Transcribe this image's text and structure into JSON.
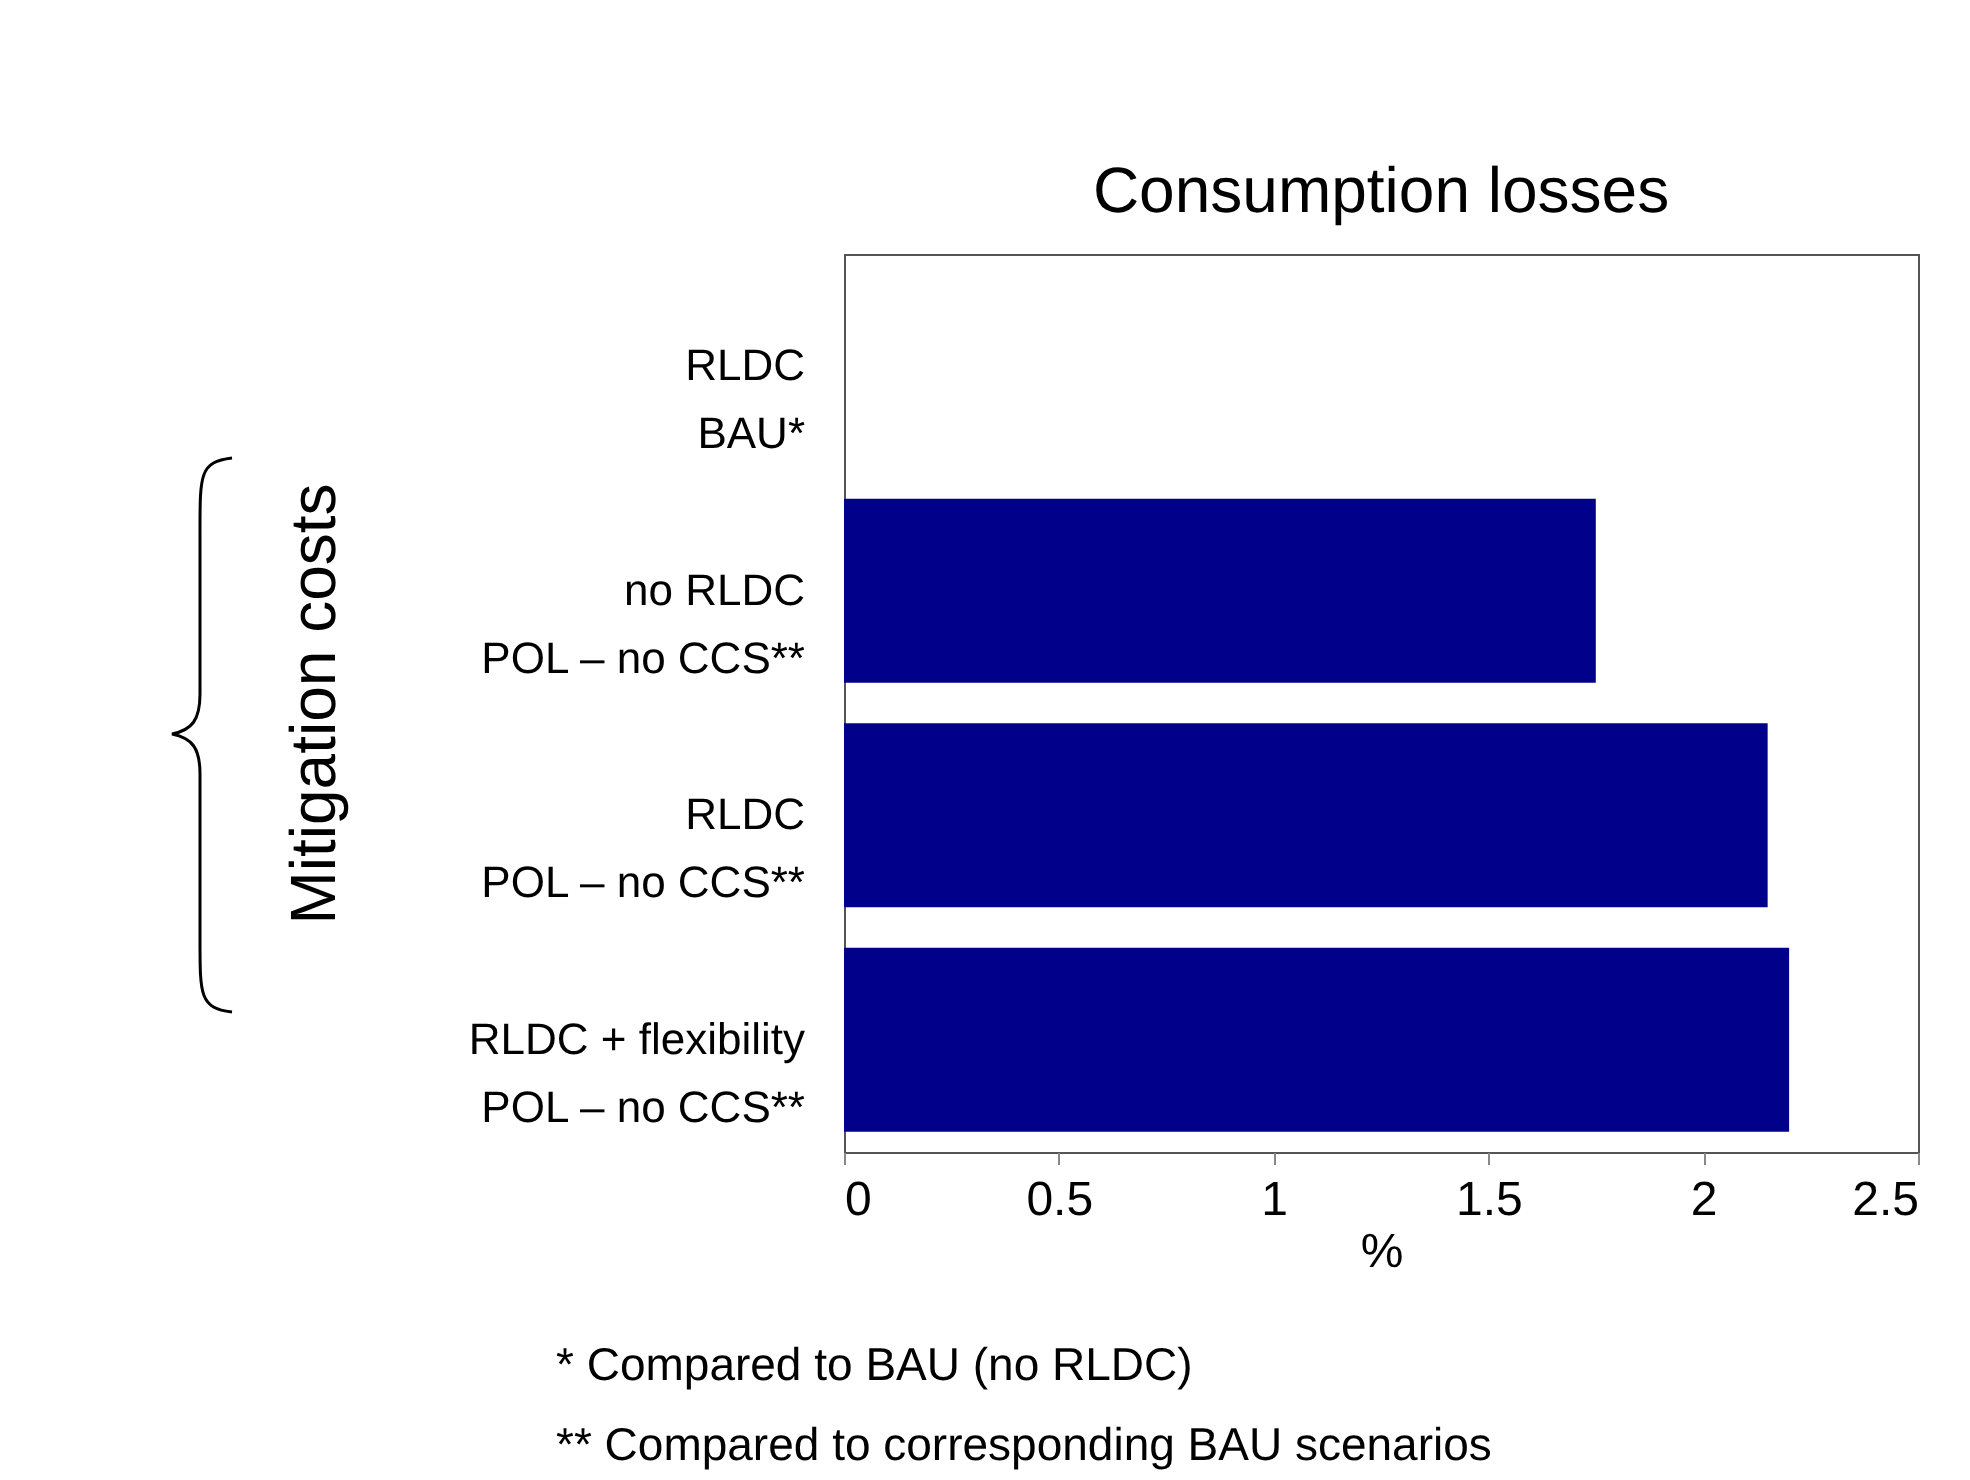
{
  "chart_data": {
    "type": "bar",
    "orientation": "horizontal",
    "title": "Consumption losses",
    "xlabel": "%",
    "ylabel": "Mitigation costs",
    "categories": [
      "RLDC\nBAU*",
      "no RLDC\nPOL – no CCS**",
      "RLDC\nPOL – no CCS**",
      "RLDC + flexibility\nPOL – no CCS**"
    ],
    "values": [
      0,
      1.75,
      2.15,
      2.2
    ],
    "color": "#00008b",
    "xlim": [
      0,
      2.5
    ],
    "xticks": [
      0,
      0.5,
      1,
      1.5,
      2,
      2.5
    ],
    "grid": false,
    "annotations": [
      "* Compared to BAU (no RLDC)",
      "** Compared to corresponding BAU scenarios"
    ]
  }
}
